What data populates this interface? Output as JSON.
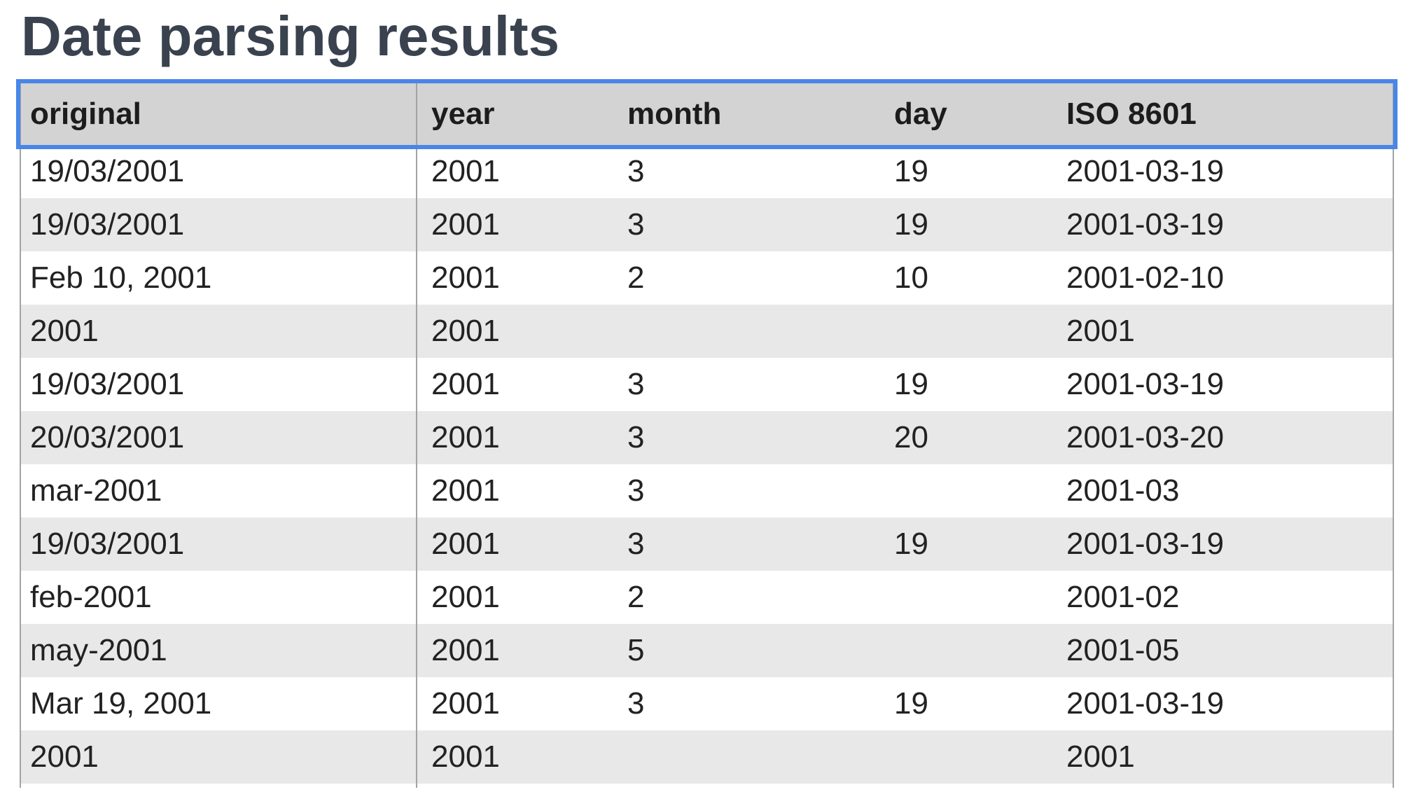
{
  "page": {
    "title": "Date parsing results"
  },
  "table": {
    "columns": [
      "original",
      "year",
      "month",
      "day",
      "ISO 8601"
    ],
    "rows": [
      [
        "19/03/2001",
        "2001",
        "3",
        "19",
        "2001-03-19"
      ],
      [
        "19/03/2001",
        "2001",
        "3",
        "19",
        "2001-03-19"
      ],
      [
        "Feb 10, 2001",
        "2001",
        "2",
        "10",
        "2001-02-10"
      ],
      [
        "2001",
        "2001",
        "",
        "",
        "2001"
      ],
      [
        "19/03/2001",
        "2001",
        "3",
        "19",
        "2001-03-19"
      ],
      [
        "20/03/2001",
        "2001",
        "3",
        "20",
        "2001-03-20"
      ],
      [
        "mar-2001",
        "2001",
        "3",
        "",
        "2001-03"
      ],
      [
        "19/03/2001",
        "2001",
        "3",
        "19",
        "2001-03-19"
      ],
      [
        "feb-2001",
        "2001",
        "2",
        "",
        "2001-02"
      ],
      [
        "may-2001",
        "2001",
        "5",
        "",
        "2001-05"
      ],
      [
        "Mar 19, 2001",
        "2001",
        "3",
        "19",
        "2001-03-19"
      ],
      [
        "2001",
        "2001",
        "",
        "",
        "2001"
      ]
    ]
  },
  "colors": {
    "accent_focus_blue": "#4886e8",
    "header_bg": "#d3d3d3",
    "alt_row_bg": "#e8e8e8",
    "table_border": "#a3a3a3",
    "title_text": "#39424e",
    "body_text": "#222222"
  }
}
